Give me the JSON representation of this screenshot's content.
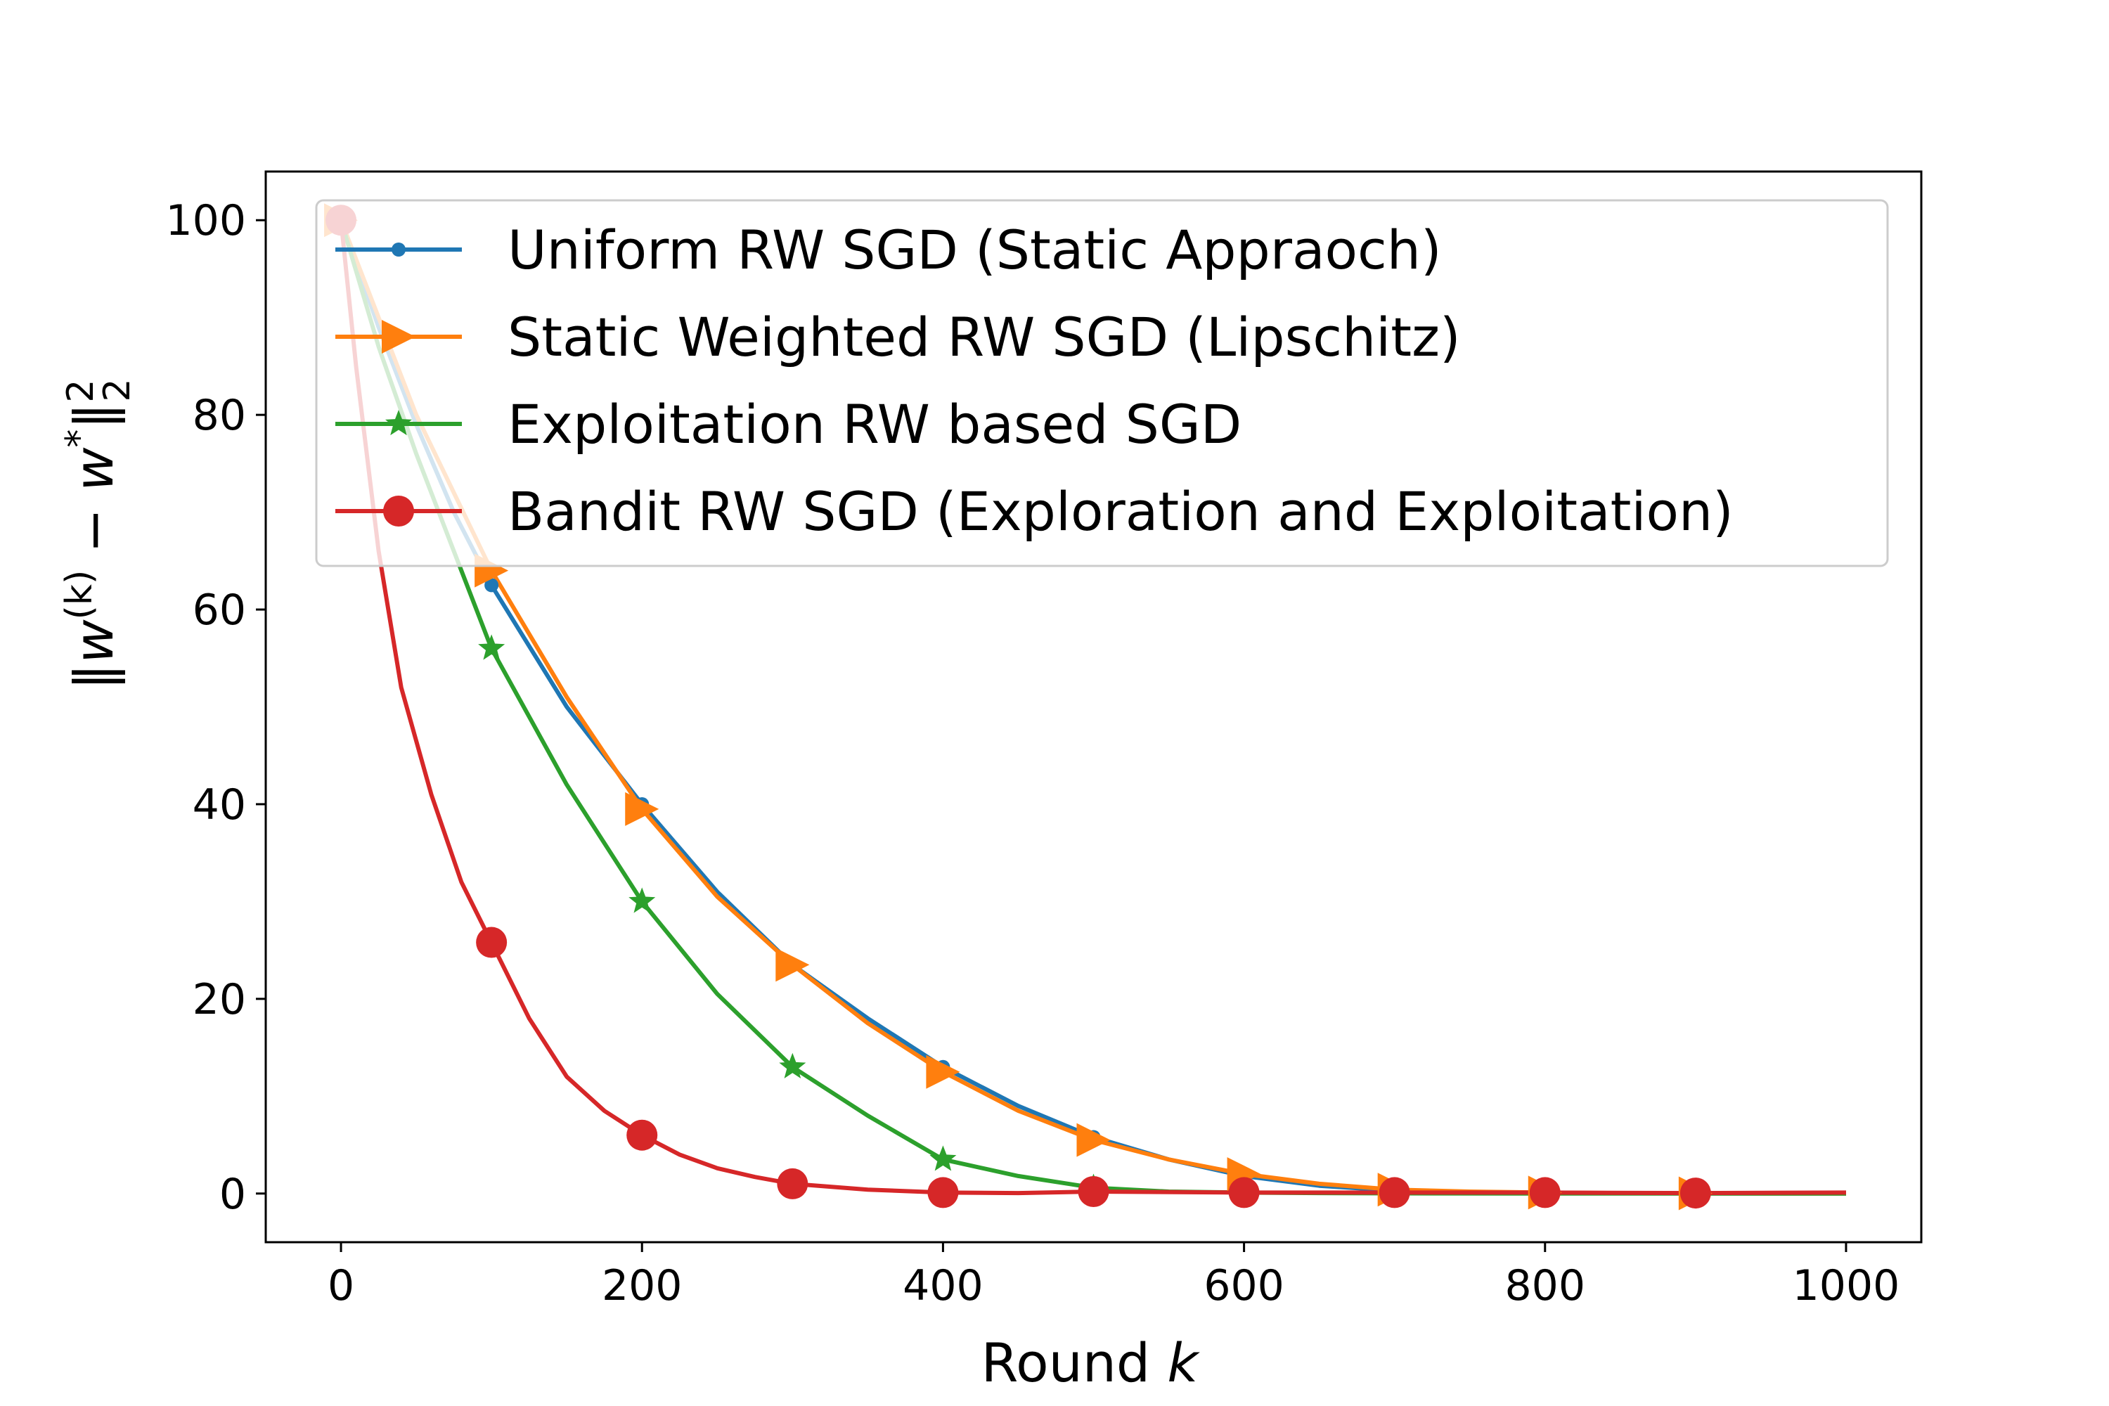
{
  "chart_data": {
    "type": "line",
    "title": "",
    "xlabel_text": "Round ",
    "xlabel_var": "k",
    "ylabel_parts": [
      "‖",
      "w",
      "(k)",
      " − ",
      "w",
      "*",
      "‖",
      "2",
      "2"
    ],
    "xlim": [
      -50,
      1050
    ],
    "ylim": [
      -5,
      105
    ],
    "x_ticks": [
      0,
      200,
      400,
      600,
      800,
      1000
    ],
    "y_ticks": [
      0,
      20,
      40,
      60,
      80,
      100
    ],
    "grid": false,
    "legend_position": "top-right",
    "series": [
      {
        "name": "Uniform RW SGD (Static Appraoch)",
        "color": "#1f77b4",
        "marker": "small-circle",
        "x": [
          0,
          25,
          50,
          75,
          100,
          150,
          200,
          250,
          300,
          350,
          400,
          450,
          500,
          550,
          600,
          650,
          700,
          750,
          800,
          850,
          900,
          950,
          1000
        ],
        "y": [
          100,
          89,
          79,
          70,
          62.5,
          50,
          40,
          31,
          23.5,
          18,
          13,
          9,
          5.8,
          3.5,
          1.8,
          0.8,
          0.3,
          0.1,
          0.05,
          0.02,
          0.01,
          0,
          0
        ],
        "markers_at": [
          0,
          100,
          200,
          300,
          400,
          500,
          600,
          700,
          800,
          900
        ],
        "marker_y": [
          100,
          62.5,
          40,
          23.5,
          13,
          5.8,
          1.8,
          0.3,
          0.05,
          0.01
        ]
      },
      {
        "name": "Static Weighted RW SGD (Lipschitz)",
        "color": "#ff7f0e",
        "marker": "triangle-right",
        "x": [
          0,
          25,
          50,
          75,
          100,
          150,
          200,
          250,
          300,
          350,
          400,
          450,
          500,
          550,
          600,
          650,
          700,
          750,
          800,
          850,
          900,
          950,
          1000
        ],
        "y": [
          100,
          90,
          80,
          72,
          64,
          51,
          39.5,
          30.5,
          23.5,
          17.5,
          12.5,
          8.5,
          5.5,
          3.5,
          2,
          1,
          0.4,
          0.2,
          0.1,
          0.05,
          0.02,
          0,
          0
        ],
        "markers_at": [
          0,
          100,
          200,
          300,
          400,
          500,
          600,
          700,
          800,
          900
        ],
        "marker_y": [
          100,
          64,
          39.5,
          23.5,
          12.5,
          5.5,
          2,
          0.4,
          0.1,
          0.02
        ]
      },
      {
        "name": "Exploitation RW based SGD",
        "color": "#2ca02c",
        "marker": "star",
        "x": [
          0,
          25,
          50,
          75,
          100,
          150,
          200,
          250,
          300,
          350,
          400,
          450,
          500,
          550,
          600,
          650,
          700,
          800,
          900,
          1000
        ],
        "y": [
          100,
          87,
          76,
          66,
          56,
          42,
          30,
          20.5,
          13,
          8,
          3.5,
          1.8,
          0.6,
          0.2,
          0.1,
          0.05,
          0.02,
          0,
          0,
          0
        ],
        "markers_at": [
          0,
          100,
          200,
          300,
          400,
          500,
          600,
          700,
          800,
          900
        ],
        "marker_y": [
          100,
          56,
          30,
          13,
          3.5,
          0.6,
          0.1,
          0.02,
          0,
          0
        ]
      },
      {
        "name": "Bandit RW SGD (Exploration and Exploitation)",
        "color": "#d62728",
        "marker": "large-circle",
        "x": [
          0,
          10,
          25,
          40,
          60,
          80,
          100,
          125,
          150,
          175,
          200,
          225,
          250,
          275,
          300,
          350,
          400,
          450,
          500,
          600,
          700,
          800,
          900,
          1000
        ],
        "y": [
          100,
          85,
          66,
          52,
          41,
          32,
          25.8,
          18,
          12,
          8.5,
          6,
          4,
          2.6,
          1.7,
          1,
          0.4,
          0.1,
          0.05,
          0.2,
          0.1,
          0.1,
          0.1,
          0.05,
          0.1
        ],
        "markers_at": [
          0,
          100,
          200,
          300,
          400,
          500,
          600,
          700,
          800,
          900
        ],
        "marker_y": [
          100,
          25.8,
          6,
          1,
          0.1,
          0.2,
          0.1,
          0.1,
          0.1,
          0.05
        ]
      }
    ]
  }
}
